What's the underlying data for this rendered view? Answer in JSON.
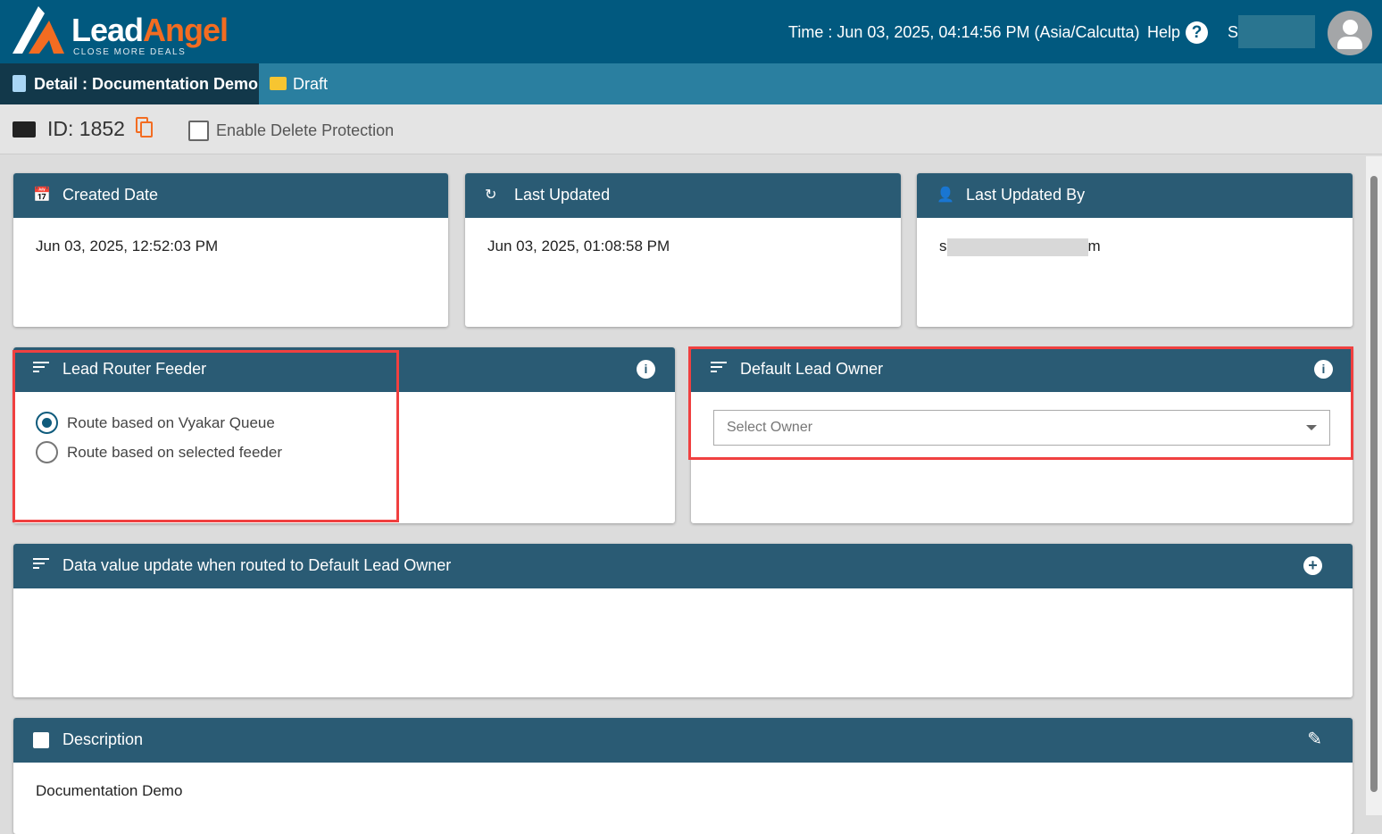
{
  "header": {
    "logo": "LeadAngel",
    "logo_tagline": "CLOSE MORE DEALS",
    "time": "Time : Jun 03, 2025, 04:14:56 PM (Asia/Calcutta)",
    "help": "Help",
    "user_initial": "S"
  },
  "tabs": [
    {
      "label": "Detail : Documentation Demo"
    },
    {
      "label": "Draft"
    }
  ],
  "idbar": {
    "id": "ID: 1852",
    "delete_protection": "Enable Delete Protection",
    "delete_protection_checked": false
  },
  "cards": {
    "created": {
      "title": "Created Date",
      "value": "Jun 03, 2025, 12:52:03 PM"
    },
    "updated": {
      "title": "Last Updated",
      "value": "Jun 03, 2025, 01:08:58 PM"
    },
    "updated_by": {
      "title": "Last Updated By",
      "value_start": "s",
      "value_end": "m"
    },
    "feeder": {
      "title": "Lead Router Feeder",
      "options": [
        {
          "label": "Route based on Vyakar Queue",
          "selected": true
        },
        {
          "label": "Route based on selected feeder",
          "selected": false
        }
      ]
    },
    "owner": {
      "title": "Default Lead Owner",
      "placeholder": "Select Owner"
    },
    "data_update": {
      "title": "Data value update when routed to Default Lead Owner"
    },
    "description": {
      "title": "Description",
      "value": "Documentation Demo"
    }
  },
  "colors": {
    "topbar": "#01597f",
    "tabbar": "#2a7fa0",
    "card_header": "#2a5b74",
    "accent": "#f36c21",
    "highlight": "#f04040"
  }
}
